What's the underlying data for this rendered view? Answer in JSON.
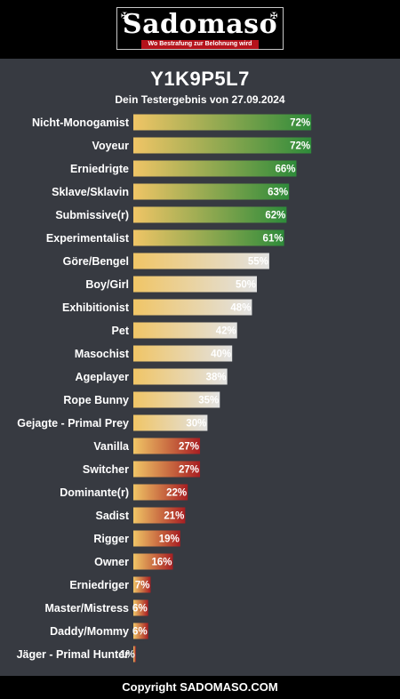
{
  "brand": {
    "name": "Sadomaso",
    "tagline": "Wo Bestrafung zur Belohnung wird"
  },
  "chart_data": {
    "type": "bar",
    "orientation": "horizontal",
    "title": "Y1K9P5L7",
    "subtitle": "Dein Testergebnis von 27.09.2024",
    "xlim": [
      0,
      100
    ],
    "value_suffix": "%",
    "categories": [
      "Nicht-Monogamist",
      "Voyeur",
      "Erniedrigte",
      "Sklave/Sklavin",
      "Submissive(r)",
      "Experimentalist",
      "Göre/Bengel",
      "Boy/Girl",
      "Exhibitionist",
      "Pet",
      "Masochist",
      "Ageplayer",
      "Rope Bunny",
      "Gejagte - Primal Prey",
      "Vanilla",
      "Switcher",
      "Dominante(r)",
      "Sadist",
      "Rigger",
      "Owner",
      "Erniedriger",
      "Master/Mistress",
      "Daddy/Mommy",
      "Jäger - Primal Hunter"
    ],
    "values": [
      72,
      72,
      66,
      63,
      62,
      61,
      55,
      50,
      48,
      42,
      40,
      38,
      35,
      30,
      27,
      27,
      22,
      21,
      19,
      16,
      7,
      6,
      6,
      1
    ],
    "value_labels": [
      "72%",
      "72%",
      "66%",
      "63%",
      "62%",
      "61%",
      "55%",
      "50%",
      "48%",
      "42%",
      "40%",
      "38%",
      "35%",
      "30%",
      "27%",
      "27%",
      "22%",
      "21%",
      "19%",
      "16%",
      "7%",
      "6%",
      "6%",
      "1%"
    ],
    "groups": [
      "green",
      "green",
      "green",
      "green",
      "green",
      "green",
      "grey",
      "grey",
      "grey",
      "grey",
      "grey",
      "grey",
      "grey",
      "grey",
      "red",
      "red",
      "red",
      "red",
      "red",
      "red",
      "red",
      "red",
      "red",
      "red"
    ],
    "colors": {
      "start": "#f0c566",
      "green": "#2e8b3a",
      "grey": "#e2e2e2",
      "red": "#a81e22"
    }
  },
  "footer": {
    "text": "Copyright SADOMASO.COM"
  }
}
